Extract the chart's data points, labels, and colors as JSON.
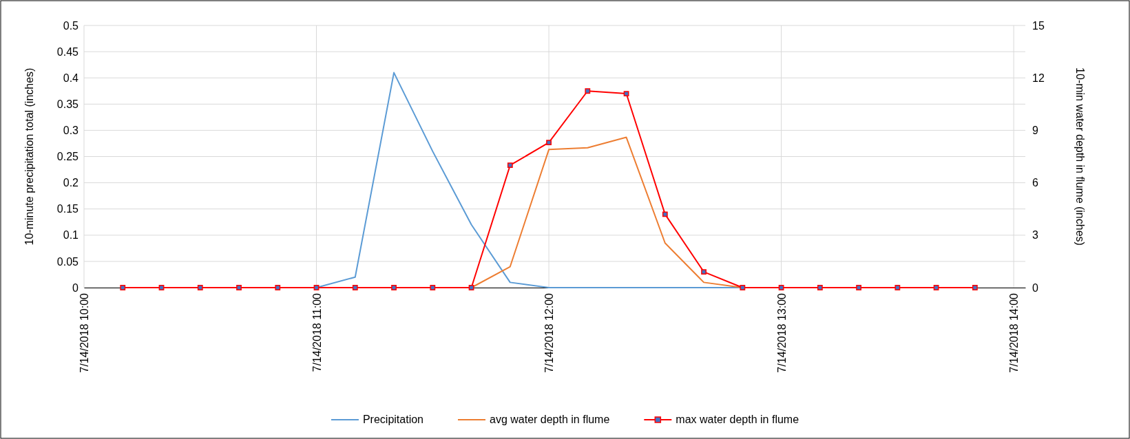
{
  "chart_data": {
    "type": "line",
    "ylabel": "10-minute precipitation total (inches)",
    "y2label": "10-min water depth in flume (inches)",
    "x": [
      "2018-07-14T10:10",
      "2018-07-14T10:20",
      "2018-07-14T10:30",
      "2018-07-14T10:40",
      "2018-07-14T10:50",
      "2018-07-14T11:00",
      "2018-07-14T11:10",
      "2018-07-14T11:20",
      "2018-07-14T11:30",
      "2018-07-14T11:40",
      "2018-07-14T11:50",
      "2018-07-14T12:00",
      "2018-07-14T12:10",
      "2018-07-14T12:20",
      "2018-07-14T12:30",
      "2018-07-14T12:40",
      "2018-07-14T12:50",
      "2018-07-14T13:00",
      "2018-07-14T13:10",
      "2018-07-14T13:20",
      "2018-07-14T13:30",
      "2018-07-14T13:40",
      "2018-07-14T13:50"
    ],
    "series": [
      {
        "name": "Precipitation",
        "color": "#5b9bd5",
        "marker": "none",
        "values": [
          null,
          null,
          null,
          null,
          null,
          0,
          0.02,
          0.41,
          0.26,
          0.12,
          0.01,
          0,
          0,
          0,
          0,
          0,
          0,
          null,
          null,
          null,
          null,
          null,
          null
        ]
      },
      {
        "name": "avg water depth in flume",
        "color": "#ed7d31",
        "axis": "y2",
        "marker": "none",
        "values": [
          null,
          null,
          null,
          null,
          null,
          null,
          null,
          null,
          null,
          0,
          1.2,
          7.9,
          8.0,
          8.6,
          2.55,
          0.3,
          0,
          null,
          null,
          null,
          null,
          null,
          null
        ]
      },
      {
        "name": "max water depth in flume",
        "color": "#ff0000",
        "axis": "y2",
        "marker": "square",
        "values": [
          0,
          0,
          0,
          0,
          0,
          0,
          0,
          0,
          0,
          0,
          7.0,
          8.3,
          11.25,
          11.1,
          4.2,
          0.9,
          0,
          0,
          0,
          0,
          0,
          0,
          0
        ]
      }
    ],
    "xlim": [
      "2018-07-14T10:00",
      "2018-07-14T14:03"
    ],
    "xticks": [
      {
        "value": "2018-07-14T10:00",
        "label": "7/14/2018 10:00"
      },
      {
        "value": "2018-07-14T11:00",
        "label": "7/14/2018 11:00"
      },
      {
        "value": "2018-07-14T12:00",
        "label": "7/14/2018 12:00"
      },
      {
        "value": "2018-07-14T13:00",
        "label": "7/14/2018 13:00"
      },
      {
        "value": "2018-07-14T14:00",
        "label": "7/14/2018 14:00"
      }
    ],
    "ylim": [
      0,
      0.5
    ],
    "yticks": [
      0,
      0.05,
      0.1,
      0.15,
      0.2,
      0.25,
      0.3,
      0.35,
      0.4,
      0.45,
      0.5
    ],
    "y2lim": [
      0,
      15
    ],
    "y2ticks": [
      0,
      3,
      6,
      9,
      12,
      15
    ],
    "grid": true,
    "legend": "bottom",
    "line_style": "solid"
  }
}
